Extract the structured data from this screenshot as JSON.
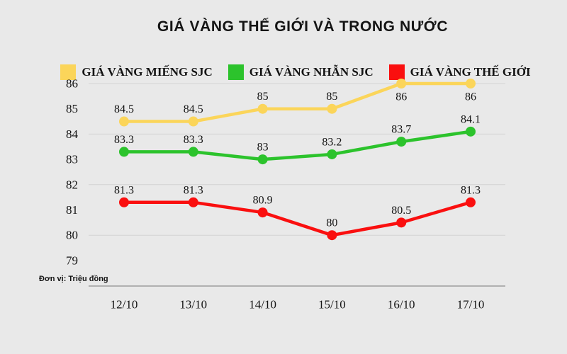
{
  "title": "GIÁ VÀNG THẾ GIỚI VÀ TRONG NƯỚC",
  "unit_note": "Đơn vị: Triệu đồng",
  "colors": {
    "background": "#e9e9e9",
    "grid": "#d3d3d3",
    "axis": "#9e9e9e",
    "text": "#141414"
  },
  "chart_data": {
    "type": "line",
    "title": "GIÁ VÀNG THẾ GIỚI VÀ TRONG NƯỚC",
    "unit": "Triệu đồng",
    "x": [
      "12/10",
      "13/10",
      "14/10",
      "15/10",
      "16/10",
      "17/10"
    ],
    "series": [
      {
        "name": "GIÁ VÀNG MIẾNG SJC",
        "color": "#fbd55a",
        "values": [
          84.5,
          84.5,
          85,
          85,
          86,
          86
        ]
      },
      {
        "name": "GIÁ VÀNG NHẪN SJC",
        "color": "#2cc32c",
        "values": [
          83.3,
          83.3,
          83,
          83.2,
          83.7,
          84.1
        ]
      },
      {
        "name": "GIÁ VÀNG THẾ GIỚI",
        "color": "#fa0f0f",
        "values": [
          81.3,
          81.3,
          80.9,
          80,
          80.5,
          81.3
        ]
      }
    ],
    "y_ticks": [
      86,
      85,
      84,
      83,
      82,
      81,
      80,
      79
    ],
    "gridline_values": [
      86,
      84,
      82,
      80
    ],
    "ylim": [
      78,
      86
    ],
    "grid": true,
    "legend_position": "top",
    "data_labels": true
  }
}
